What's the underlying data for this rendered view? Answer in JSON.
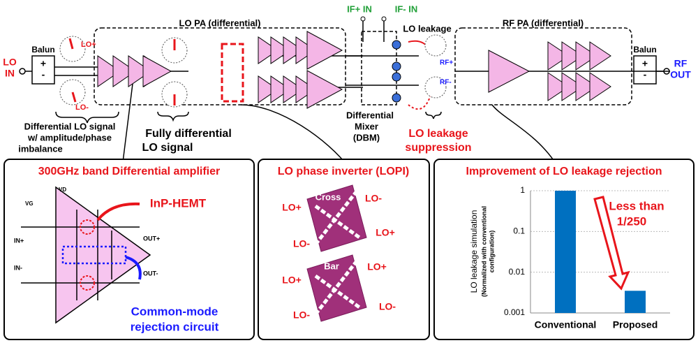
{
  "diagram": {
    "lo_in": [
      "LO",
      "IN"
    ],
    "balun_left": "Balun",
    "balun_right": "Balun",
    "rf_out": [
      "RF",
      "OUT"
    ],
    "lo_plus": "LO+",
    "lo_minus": "LO-",
    "lo_pa": "LO PA (differential)",
    "rf_pa": "RF PA (differential)",
    "if_plus": "IF+ IN",
    "if_minus": "IF- IN",
    "lo_leakage": "LO leakage",
    "rf_plus": "RF+",
    "rf_minus": "RF-",
    "diff_lo_signal": [
      "Differential LO signal",
      "w/ amplitude/phase",
      "imbalance"
    ],
    "fully_diff": [
      "Fully differential",
      "LO signal"
    ],
    "mixer": [
      "Differential",
      "Mixer",
      "(DBM)"
    ],
    "leak_supp": [
      "LO leakage",
      "suppression"
    ]
  },
  "panel_amp": {
    "title": "300GHz band Differential amplifier",
    "hemt": "InP-HEMT",
    "cmrc": [
      "Common-mode",
      "rejection circuit"
    ],
    "in_plus": "IN+",
    "in_minus": "IN-",
    "out_plus": "OUT+",
    "out_minus": "OUT-",
    "vd": "VD",
    "vg": "VG"
  },
  "panel_lopi": {
    "title": "LO phase inverter (LOPI)",
    "cross": "Cross",
    "bar": "Bar",
    "lo_plus": "LO+",
    "lo_minus": "LO-"
  },
  "chart_data": {
    "type": "bar",
    "title": "Improvement of LO leakage rejection",
    "ylabel": [
      "LO leakage simulation",
      "(Normalized with conventional",
      "configuration)"
    ],
    "categories": [
      "Conventional",
      "Proposed"
    ],
    "values": [
      1,
      0.0035
    ],
    "color": "#0070c0",
    "ylim": [
      0.001,
      1
    ],
    "yticks": [
      1,
      0.1,
      0.01,
      0.001
    ],
    "log_scale": true,
    "grid": true,
    "annotation": [
      "Less than",
      "1/250"
    ]
  }
}
